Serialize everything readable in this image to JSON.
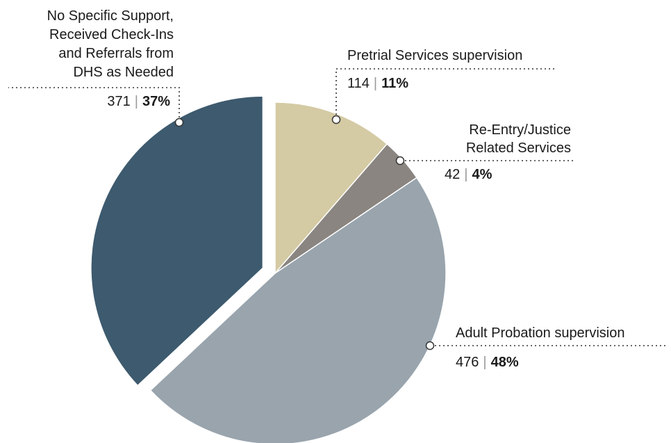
{
  "chart_data": {
    "type": "pie",
    "slices": [
      {
        "label_lines": [
          "Pretrial Services supervision"
        ],
        "count": "114",
        "percent": "11%",
        "value": 114,
        "color": "#d4caa4"
      },
      {
        "label_lines": [
          "Re-Entry/Justice",
          "Related Services"
        ],
        "count": "42",
        "percent": "4%",
        "value": 42,
        "color": "#8a8580"
      },
      {
        "label_lines": [
          "Adult Probation supervision"
        ],
        "count": "476",
        "percent": "48%",
        "value": 476,
        "color": "#99a4ad"
      },
      {
        "label_lines": [
          "No Specific Support,",
          "Received Check-Ins",
          "and Referrals from",
          "DHS as Needed"
        ],
        "count": "371",
        "percent": "37%",
        "value": 371,
        "color": "#3d5a6e"
      }
    ]
  }
}
